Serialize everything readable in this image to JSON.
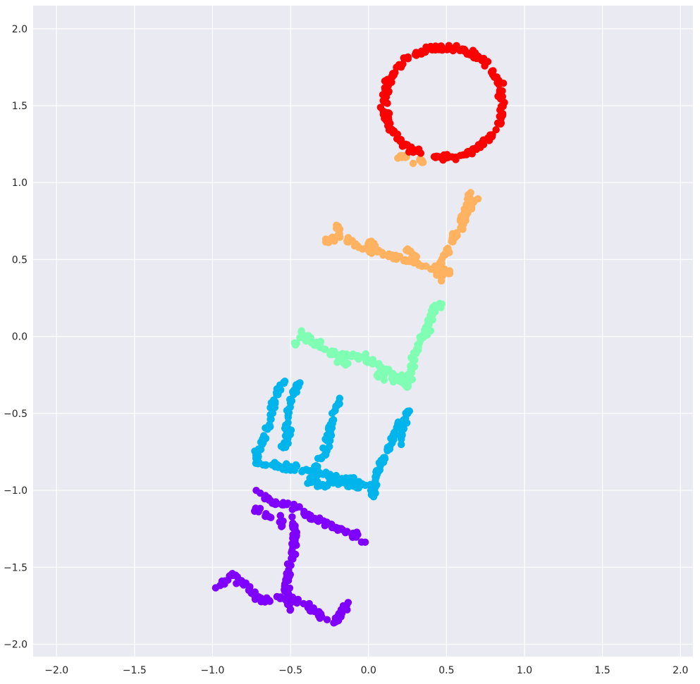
{
  "chart_data": {
    "type": "scatter",
    "title": "",
    "xlabel": "",
    "ylabel": "",
    "xlim": [
      -2.15,
      2.08
    ],
    "ylim": [
      -2.08,
      2.15
    ],
    "xticks": [
      -2.0,
      -1.5,
      -1.0,
      -0.5,
      0.0,
      0.5,
      1.0,
      1.5,
      2.0
    ],
    "yticks": [
      -2.0,
      -1.5,
      -1.0,
      -0.5,
      0.0,
      0.5,
      1.0,
      1.5,
      2.0
    ],
    "xtick_labels": [
      "−2.0",
      "−1.5",
      "−1.0",
      "−0.5",
      "0.0",
      "0.5",
      "1.0",
      "1.5",
      "2.0"
    ],
    "ytick_labels": [
      "−2.0",
      "−1.5",
      "−1.0",
      "−0.5",
      "0.0",
      "0.5",
      "1.0",
      "1.5",
      "2.0"
    ],
    "grid": true,
    "background": "#eaeaf2",
    "grid_color": "#ffffff",
    "series": [
      {
        "color": "#8000ff",
        "segments": [
          [
            [
              -0.71,
              -1.0
            ],
            [
              -0.6,
              -1.1
            ],
            [
              -0.55,
              -1.08
            ],
            [
              -0.45,
              -1.12
            ],
            [
              -0.38,
              -1.18
            ],
            [
              -0.25,
              -1.22
            ],
            [
              -0.12,
              -1.28
            ],
            [
              -0.02,
              -1.33
            ]
          ],
          [
            [
              -0.73,
              -1.12
            ],
            [
              -0.62,
              -1.18
            ]
          ],
          [
            [
              -0.57,
              -1.18
            ],
            [
              -0.55,
              -1.25
            ]
          ],
          [
            [
              -0.48,
              -1.16
            ],
            [
              -0.47,
              -1.32
            ],
            [
              -0.49,
              -1.45
            ],
            [
              -0.52,
              -1.56
            ],
            [
              -0.53,
              -1.67
            ],
            [
              -0.5,
              -1.78
            ]
          ],
          [
            [
              -0.97,
              -1.62
            ],
            [
              -0.87,
              -1.55
            ],
            [
              -0.78,
              -1.62
            ],
            [
              -0.68,
              -1.72
            ],
            [
              -0.55,
              -1.7
            ],
            [
              -0.45,
              -1.72
            ],
            [
              -0.35,
              -1.78
            ],
            [
              -0.23,
              -1.86
            ],
            [
              -0.13,
              -1.73
            ]
          ]
        ]
      },
      {
        "color": "#00b5eb",
        "segments": [
          [
            [
              -0.55,
              -0.28
            ],
            [
              -0.6,
              -0.42
            ],
            [
              -0.64,
              -0.56
            ],
            [
              -0.68,
              -0.68
            ],
            [
              -0.72,
              -0.8
            ],
            [
              -0.7,
              -0.82
            ],
            [
              -0.58,
              -0.84
            ],
            [
              -0.45,
              -0.86
            ],
            [
              -0.35,
              -0.88
            ],
            [
              -0.2,
              -0.92
            ],
            [
              -0.05,
              -0.95
            ],
            [
              0.05,
              -0.97
            ]
          ],
          [
            [
              -0.43,
              -0.28
            ],
            [
              -0.48,
              -0.35
            ],
            [
              -0.52,
              -0.52
            ],
            [
              -0.52,
              -0.65
            ],
            [
              -0.55,
              -0.75
            ]
          ],
          [
            [
              -0.18,
              -0.4
            ],
            [
              -0.22,
              -0.5
            ],
            [
              -0.25,
              -0.62
            ],
            [
              -0.28,
              -0.75
            ],
            [
              -0.33,
              -0.85
            ],
            [
              -0.38,
              -0.95
            ],
            [
              -0.3,
              -0.97
            ],
            [
              -0.18,
              -0.95
            ],
            [
              -0.05,
              -0.98
            ]
          ],
          [
            [
              0.22,
              -0.52
            ],
            [
              0.18,
              -0.62
            ],
            [
              0.12,
              -0.72
            ],
            [
              0.07,
              -0.85
            ],
            [
              0.03,
              -0.97
            ],
            [
              0.03,
              -1.05
            ]
          ],
          [
            [
              0.25,
              -0.48
            ],
            [
              0.23,
              -0.6
            ],
            [
              0.2,
              -0.7
            ]
          ]
        ]
      },
      {
        "color": "#80ffb4",
        "segments": [
          [
            [
              -0.47,
              -0.05
            ],
            [
              -0.38,
              0.0
            ],
            [
              -0.3,
              -0.07
            ],
            [
              -0.22,
              -0.12
            ],
            [
              -0.12,
              -0.12
            ],
            [
              -0.02,
              -0.14
            ],
            [
              0.08,
              -0.2
            ],
            [
              0.18,
              -0.25
            ],
            [
              0.28,
              -0.28
            ]
          ],
          [
            [
              -0.43,
              0.02
            ],
            [
              -0.35,
              -0.04
            ]
          ],
          [
            [
              -0.2,
              -0.18
            ],
            [
              -0.12,
              -0.17
            ]
          ],
          [
            [
              0.05,
              -0.25
            ],
            [
              0.15,
              -0.28
            ],
            [
              0.23,
              -0.3
            ]
          ],
          [
            [
              0.23,
              -0.33
            ],
            [
              0.28,
              -0.2
            ],
            [
              0.32,
              -0.05
            ],
            [
              0.37,
              0.05
            ],
            [
              0.4,
              0.12
            ],
            [
              0.42,
              0.2
            ],
            [
              0.47,
              0.22
            ]
          ],
          [
            [
              0.36,
              0.0
            ],
            [
              0.4,
              0.05
            ]
          ]
        ]
      },
      {
        "color": "#ffb360",
        "segments": [
          [
            [
              -0.27,
              0.61
            ],
            [
              -0.2,
              0.66
            ],
            [
              -0.13,
              0.63
            ],
            [
              -0.07,
              0.58
            ],
            [
              0.03,
              0.56
            ],
            [
              0.13,
              0.53
            ],
            [
              0.23,
              0.5
            ],
            [
              0.33,
              0.47
            ],
            [
              0.43,
              0.45
            ],
            [
              0.52,
              0.42
            ]
          ],
          [
            [
              -0.22,
              0.73
            ],
            [
              -0.17,
              0.68
            ]
          ],
          [
            [
              0.0,
              0.64
            ],
            [
              0.05,
              0.58
            ]
          ],
          [
            [
              0.22,
              0.57
            ],
            [
              0.3,
              0.52
            ]
          ],
          [
            [
              0.47,
              0.35
            ],
            [
              0.45,
              0.45
            ],
            [
              0.5,
              0.55
            ],
            [
              0.55,
              0.65
            ],
            [
              0.6,
              0.75
            ],
            [
              0.63,
              0.85
            ],
            [
              0.66,
              0.92
            ]
          ],
          [
            [
              0.58,
              0.7
            ],
            [
              0.62,
              0.8
            ],
            [
              0.7,
              0.88
            ]
          ],
          [
            [
              0.2,
              1.18
            ],
            [
              0.27,
              1.15
            ],
            [
              0.35,
              1.14
            ]
          ]
        ]
      },
      {
        "color": "#ff0000",
        "ring": {
          "cx": 0.48,
          "cy": 1.52,
          "rx": 0.38,
          "ry": 0.36,
          "thickness": 0.06
        }
      }
    ]
  }
}
